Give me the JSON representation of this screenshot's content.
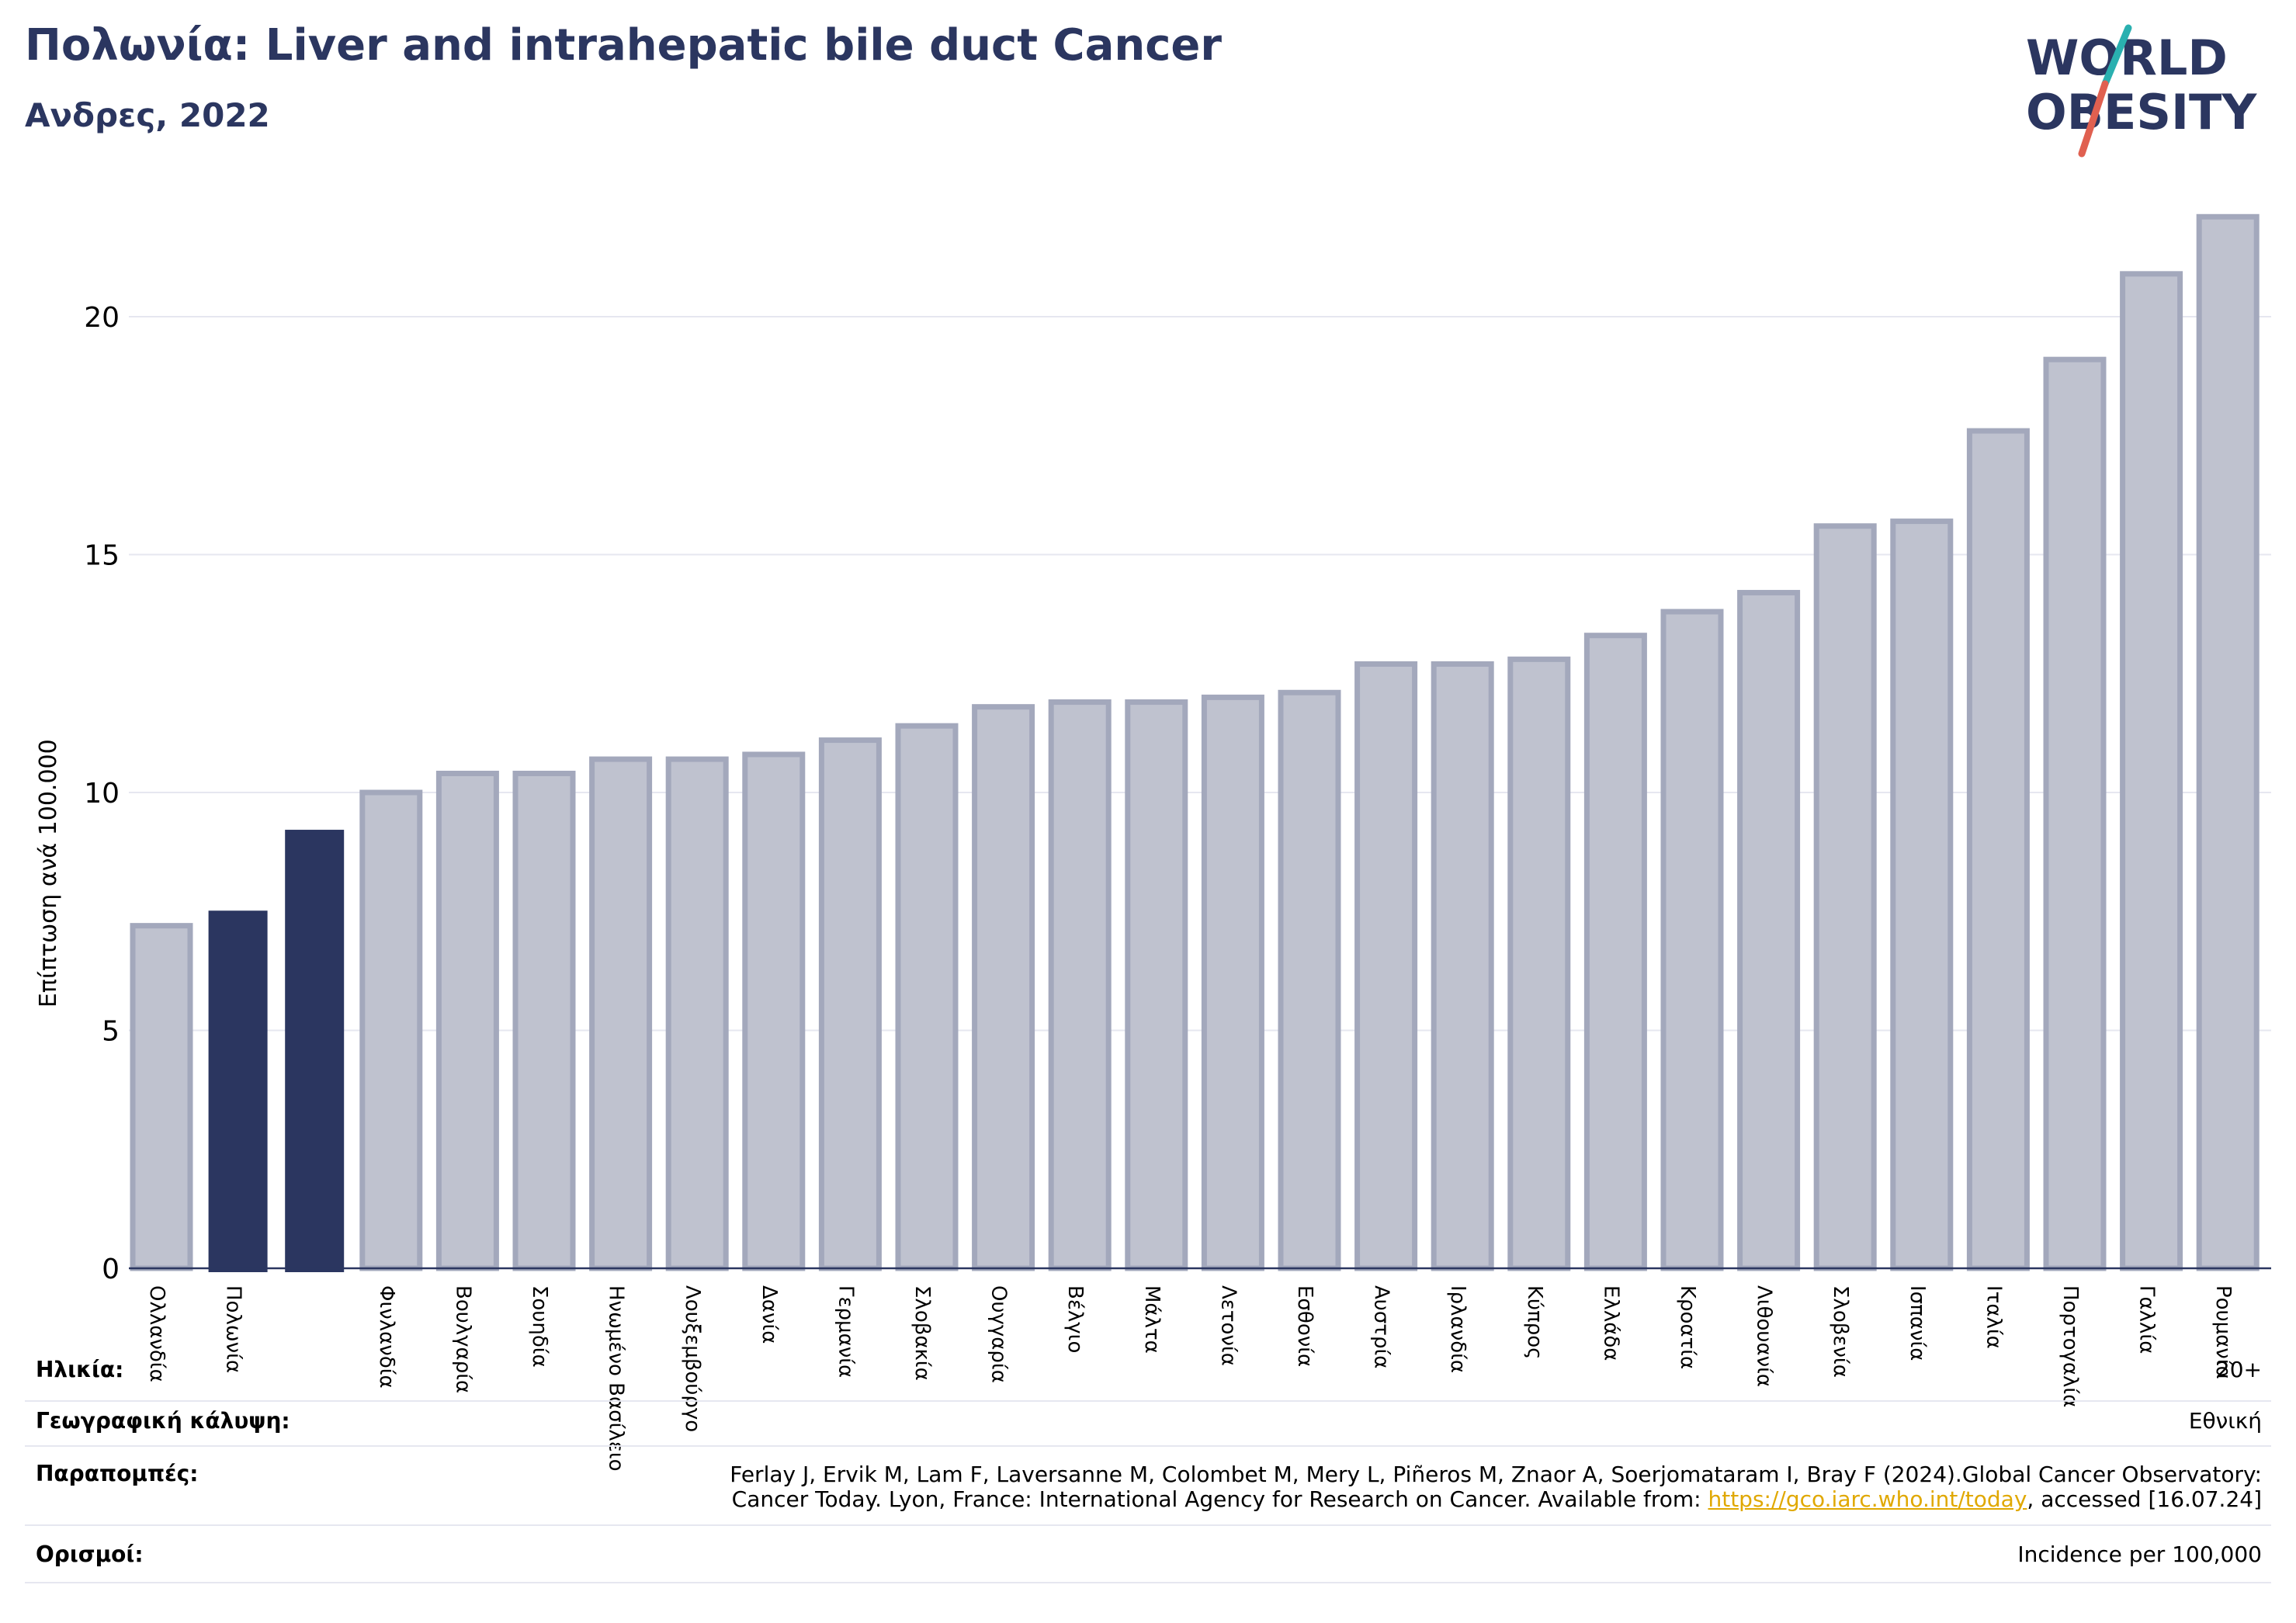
{
  "header": {
    "title": "Πολωνία: Liver and intrahepatic bile duct Cancer",
    "subtitle": "Ανδρες, 2022"
  },
  "logo": {
    "line1": "WORLD",
    "line2": "OBESITY",
    "colors": {
      "text": "#2b3660",
      "slash_teal": "#2ab0b0",
      "slash_red": "#e06050"
    }
  },
  "colors": {
    "highlight": "#2b3660",
    "normal_fill": "#bfc2cf",
    "normal_stroke": "#a3a8bc",
    "grid": "#e6e7f0",
    "axis": "#2b3660"
  },
  "chart_data": {
    "type": "bar",
    "title": "Πολωνία: Liver and intrahepatic bile duct Cancer",
    "subtitle": "Ανδρες, 2022",
    "xlabel": "",
    "ylabel": "Επίπτωση ανά 100.000",
    "ylim": [
      0,
      22.5
    ],
    "yticks": [
      0,
      5,
      10,
      15,
      20
    ],
    "grid": true,
    "categories": [
      "Ολλανδία",
      "Πολωνία",
      "",
      "Φινλανδία",
      "Βουλγαρία",
      "Σουηδία",
      "Ηνωμένο Βασίλειο",
      "Λουξεμβούργο",
      "Δανία",
      "Γερμανία",
      "Σλοβακία",
      "Ουγγαρία",
      "Βέλγιο",
      "Μάλτα",
      "Λετονία",
      "Εσθονία",
      "Αυστρία",
      "Ιρλανδία",
      "Κύπρος",
      "Ελλάδα",
      "Κροατία",
      "Λιθουανία",
      "Σλοβενία",
      "Ισπανία",
      "Ιταλία",
      "Πορτογαλία",
      "Γαλλία",
      "Ρουμανία"
    ],
    "values": [
      7.2,
      7.5,
      9.2,
      10.0,
      10.4,
      10.4,
      10.7,
      10.7,
      10.8,
      11.1,
      11.4,
      11.8,
      11.9,
      11.9,
      12.0,
      12.1,
      12.7,
      12.7,
      12.8,
      13.3,
      13.8,
      14.2,
      15.6,
      15.7,
      17.6,
      19.1,
      20.9,
      22.1
    ],
    "highlighted": [
      1,
      2
    ]
  },
  "info": {
    "age_label": "Ηλικία:",
    "age_value": "20+",
    "coverage_label": "Γεωγραφική κάλυψη:",
    "coverage_value": "Εθνική",
    "refs_label": "Παραπομπές:",
    "refs_line1": "Ferlay J, Ervik M, Lam F, Laversanne M, Colombet M, Mery L, Piñeros M, Znaor A, Soerjomataram I, Bray F (2024).Global Cancer Observatory:",
    "refs_line2_pre": "Cancer Today. Lyon, France: International Agency for Research on Cancer. Available from: ",
    "refs_link": "https://gco.iarc.who.int/today",
    "refs_line2_post": ", accessed [16.07.24]",
    "defs_label": "Ορισμοί:",
    "defs_value": "Incidence per 100,000"
  }
}
